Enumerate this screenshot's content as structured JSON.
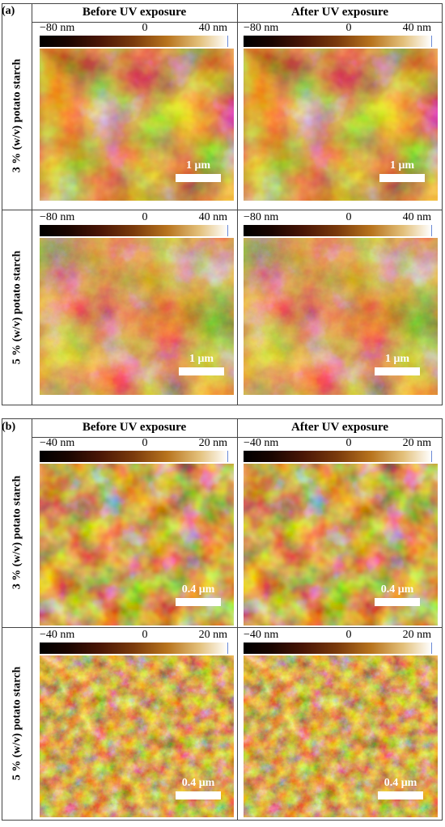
{
  "panels": [
    {
      "label": "(a)",
      "columns": [
        "Before UV exposure",
        "After UV exposure"
      ],
      "rows": [
        "3 % (w/v) potato starch",
        "5 % (w/v) potato starch"
      ],
      "colorbar": {
        "min": "−80 nm",
        "mid": "0",
        "max": "40 nm"
      },
      "scalebar": "1 μm"
    },
    {
      "label": "(b)",
      "columns": [
        "Before UV exposure",
        "After UV exposure"
      ],
      "rows": [
        "3 % (w/v) potato starch",
        "5 % (w/v) potato starch"
      ],
      "colorbar": {
        "min": "−40 nm",
        "mid": "0",
        "max": "20 nm"
      },
      "scalebar": "0.4 μm"
    }
  ],
  "colors": {
    "afm_dark": "#2a0b02",
    "afm_mid": "#8a4a12",
    "afm_light": "#f0d9a0",
    "afm_base": "#6a3209"
  }
}
